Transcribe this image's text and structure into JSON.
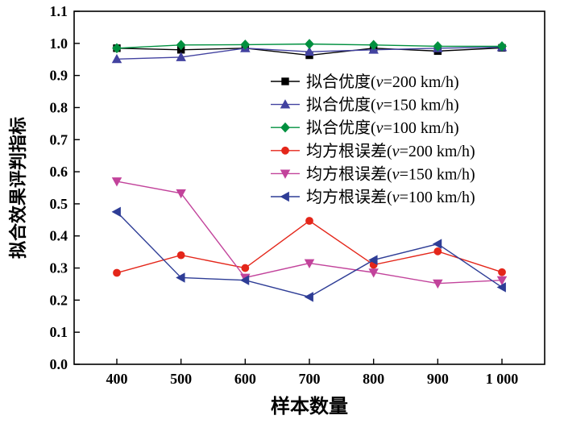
{
  "chart_data": {
    "type": "line",
    "title": "",
    "xlabel": "样本数量",
    "ylabel": "拟合效果评判指标",
    "x": [
      400,
      500,
      600,
      700,
      800,
      900,
      1000
    ],
    "x_tick_labels": [
      "400",
      "500",
      "600",
      "700",
      "800",
      "900",
      "1 000"
    ],
    "ylim": [
      0.0,
      1.1
    ],
    "y_tick_step": 0.1,
    "grid": false,
    "legend_position": "upper-center",
    "frame": true,
    "axis_color": "#000000",
    "series": [
      {
        "name": "拟合优度(v=200 km/h)",
        "marker": "square",
        "color": "#000000",
        "values": [
          0.985,
          0.98,
          0.985,
          0.963,
          0.985,
          0.976,
          0.986
        ]
      },
      {
        "name": "拟合优度(v=150 km/h)",
        "marker": "triangle-up",
        "color": "#4242a0",
        "values": [
          0.951,
          0.957,
          0.985,
          0.974,
          0.98,
          0.985,
          0.988
        ]
      },
      {
        "name": "拟合优度(v=100 km/h)",
        "marker": "diamond",
        "color": "#00903f",
        "values": [
          0.985,
          0.995,
          0.996,
          0.998,
          0.995,
          0.991,
          0.991
        ]
      },
      {
        "name": "均方根误差(v=200 km/h)",
        "marker": "circle",
        "color": "#e4261a",
        "values": [
          0.285,
          0.34,
          0.3,
          0.447,
          0.31,
          0.352,
          0.287
        ]
      },
      {
        "name": "均方根误差(v=150 km/h)",
        "marker": "triangle-down",
        "color": "#c2439b",
        "values": [
          0.57,
          0.533,
          0.27,
          0.315,
          0.286,
          0.252,
          0.262
        ]
      },
      {
        "name": "均方根误差(v=100 km/h)",
        "marker": "triangle-left",
        "color": "#2e3d96",
        "values": [
          0.475,
          0.27,
          0.262,
          0.21,
          0.325,
          0.375,
          0.24
        ]
      }
    ]
  }
}
